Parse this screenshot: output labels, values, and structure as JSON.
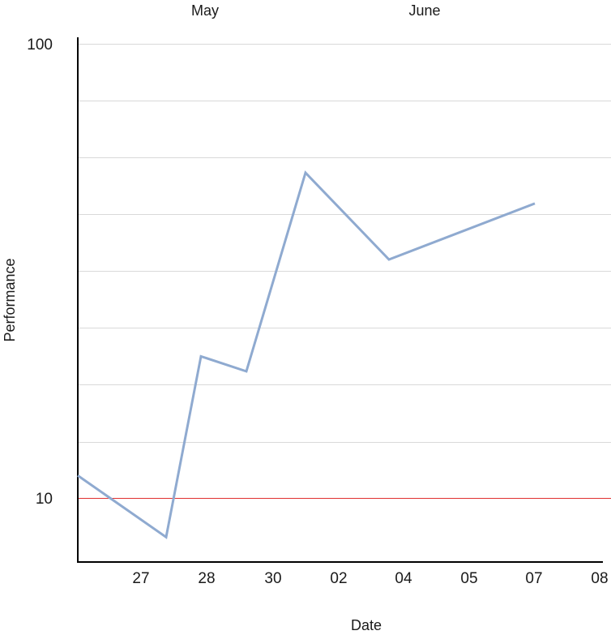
{
  "chart_data": {
    "type": "line",
    "xlabel": "Date",
    "ylabel": "Performance",
    "y_scale": "log",
    "ylim": [
      7.65,
      100
    ],
    "y_ticks": [
      {
        "value": 100,
        "label": "100"
      },
      {
        "value": 10,
        "label": "10"
      }
    ],
    "y_gridlines": [
      100,
      75,
      56.2,
      42.2,
      31.6,
      23.7,
      17.8,
      13.3
    ],
    "x_ticks": [
      {
        "x": "May 27",
        "label": "27"
      },
      {
        "x": "May 28",
        "label": "28"
      },
      {
        "x": "May 30",
        "label": "30"
      },
      {
        "x": "Jun 02",
        "label": "02"
      },
      {
        "x": "Jun 04",
        "label": "04"
      },
      {
        "x": "Jun 05",
        "label": "05"
      },
      {
        "x": "Jun 07",
        "label": "07"
      },
      {
        "x": "Jun 08",
        "label": "08"
      }
    ],
    "month_labels": [
      "May",
      "June"
    ],
    "reference_line": {
      "value": 10,
      "color": "#e03030"
    },
    "series": [
      {
        "color": "#8faad0",
        "points": [
          {
            "x": "May 26",
            "y": 11.2
          },
          {
            "x": "May 27",
            "y": 8.2
          },
          {
            "x": "May 28",
            "y": 20.5
          },
          {
            "x": "May 29",
            "y": 19.0
          },
          {
            "x": "May 31",
            "y": 52.0
          },
          {
            "x": "Jun 03",
            "y": 33.5
          },
          {
            "x": "Jun 07",
            "y": 44.5
          }
        ]
      }
    ],
    "grid": true,
    "axis_color": "#000000",
    "grid_color": "#d9d9d9"
  }
}
